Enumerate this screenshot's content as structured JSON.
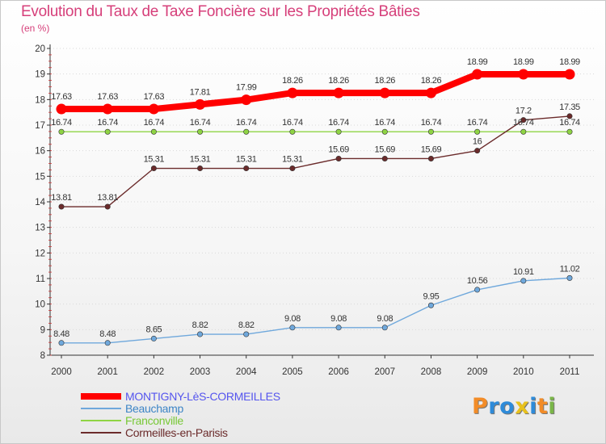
{
  "header": {
    "title": "Evolution du Taux de Taxe Foncière sur les Propriétés Bâties",
    "subtitle": "(en %)"
  },
  "brand": {
    "logo_text": "Proxiti",
    "logo_colors": [
      "#f28c28",
      "#2e8bd9",
      "#2e8bd9",
      "#e8c11c",
      "#2e8bd9",
      "#f28c28",
      "#7ab648"
    ]
  },
  "chart_data": {
    "type": "line",
    "title": "Evolution du Taux de Taxe Foncière sur les Propriétés Bâties",
    "ylabel": "(en %)",
    "x": [
      "2000",
      "2001",
      "2002",
      "2003",
      "2004",
      "2005",
      "2006",
      "2007",
      "2008",
      "2009",
      "2010",
      "2011"
    ],
    "ylim": [
      8,
      20
    ],
    "yticks": [
      "8",
      "9",
      "10",
      "11",
      "12",
      "13",
      "14",
      "15",
      "16",
      "17",
      "18",
      "19",
      "20"
    ],
    "grid": "horizontal",
    "legend": "bottom-left",
    "series": [
      {
        "name": "MONTIGNY-LèS-CORMEILLES",
        "color": "#ff0000",
        "label_color": "#5555ee",
        "emphasis": true,
        "values": [
          17.63,
          17.63,
          17.63,
          17.81,
          17.99,
          18.26,
          18.26,
          18.26,
          18.26,
          18.99,
          18.99,
          18.99
        ],
        "labels": [
          "17.63",
          "17.63",
          "17.63",
          "17.81",
          "17.99",
          "18.26",
          "18.26",
          "18.26",
          "18.26",
          "18.99",
          "18.99",
          "18.99"
        ]
      },
      {
        "name": "Beauchamp",
        "color": "#6fa8dc",
        "label_color": "#3d85c6",
        "emphasis": false,
        "values": [
          8.48,
          8.48,
          8.65,
          8.82,
          8.82,
          9.08,
          9.08,
          9.08,
          9.95,
          10.56,
          10.91,
          11.02
        ],
        "labels": [
          "8.48",
          "8.48",
          "8.65",
          "8.82",
          "8.82",
          "9.08",
          "9.08",
          "9.08",
          "9.95",
          "10.56",
          "10.91",
          "11.02"
        ]
      },
      {
        "name": "Franconville",
        "color": "#8fd444",
        "label_color": "#78c837",
        "emphasis": false,
        "values": [
          16.74,
          16.74,
          16.74,
          16.74,
          16.74,
          16.74,
          16.74,
          16.74,
          16.74,
          16.74,
          16.74,
          16.74
        ],
        "labels": [
          "16.74",
          "16.74",
          "16.74",
          "16.74",
          "16.74",
          "16.74",
          "16.74",
          "16.74",
          "16.74",
          "16.74",
          "16.74",
          "16.74"
        ]
      },
      {
        "name": "Cormeilles-en-Parisis",
        "color": "#6b2b2b",
        "label_color": "#6b2b2b",
        "emphasis": false,
        "values": [
          13.81,
          13.81,
          15.31,
          15.31,
          15.31,
          15.31,
          15.69,
          15.69,
          15.69,
          16,
          17.2,
          17.35
        ],
        "labels": [
          "13.81",
          "13.81",
          "15.31",
          "15.31",
          "15.31",
          "15.31",
          "15.69",
          "15.69",
          "15.69",
          "16",
          "17.2",
          "17.35"
        ]
      }
    ]
  }
}
